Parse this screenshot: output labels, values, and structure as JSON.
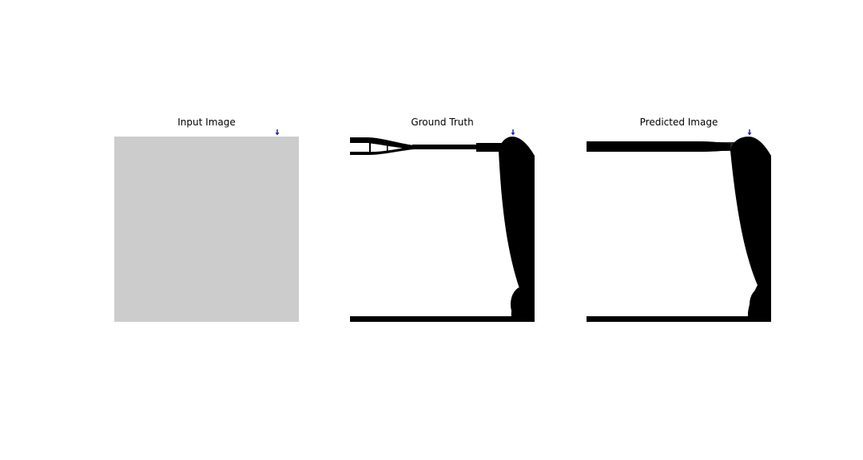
{
  "panels": [
    {
      "id": "input",
      "title": "Input Image"
    },
    {
      "id": "ground_truth",
      "title": "Ground Truth"
    },
    {
      "id": "predicted",
      "title": "Predicted Image"
    }
  ],
  "colors": {
    "background": "#ffffff",
    "input_fill": "#cccccc",
    "structure": "#000000",
    "load_marker": "#2222cc"
  },
  "icons": {
    "load_marker": "load-arrow-icon"
  }
}
